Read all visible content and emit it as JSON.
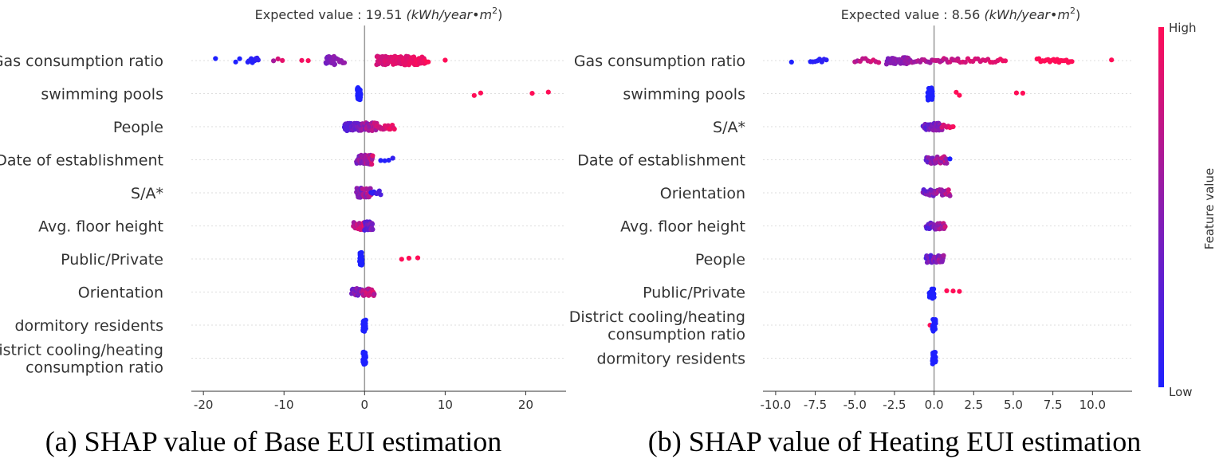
{
  "colorbar": {
    "high_label": "High",
    "low_label": "Low",
    "title": "Feature value",
    "high_color": "#ff0d57",
    "low_color": "#1e20ff"
  },
  "chart_data": [
    {
      "type": "scatter",
      "subtype": "shap-beeswarm",
      "title": "Expected value : 19.51 (kWh/year•m²)",
      "ev_prefix": "Expected value : 19.51",
      "ev_unit_text": "(kWh/year•m",
      "ev_unit_sup": "2",
      "ev_unit_close": ")",
      "caption": "(a) SHAP value of Base EUI estimation",
      "xlim": [
        -21.5,
        25
      ],
      "xticks": [
        -20,
        -10,
        0,
        10,
        20
      ],
      "xtick_labels": [
        "-20",
        "-10",
        "0",
        "10",
        "20"
      ],
      "features": [
        {
          "name": "Gas consumption ratio",
          "lines": [
            "Gas consumption ratio"
          ],
          "clusters": [
            [
              -18.5,
              -18.5,
              1,
              0,
              0
            ],
            [
              -16,
              -15.5,
              2,
              0,
              0
            ],
            [
              -14.5,
              -13.2,
              10,
              0,
              0.1
            ],
            [
              -11.3,
              -10.2,
              3,
              0.6,
              0.9
            ],
            [
              -7.8,
              -7,
              2,
              0.9,
              1
            ],
            [
              -4.8,
              -3.7,
              22,
              0.35,
              0.55
            ],
            [
              -3.5,
              -2.5,
              6,
              0.45,
              0.6
            ],
            [
              1.5,
              7.5,
              130,
              0.75,
              1
            ],
            [
              7.7,
              7.9,
              2,
              1,
              1
            ],
            [
              10,
              10,
              1,
              1,
              1
            ]
          ]
        },
        {
          "name": "swimming pools",
          "lines": [
            "swimming pools"
          ],
          "clusters": [
            [
              -0.9,
              -0.5,
              45,
              0,
              0
            ],
            [
              13.6,
              14.4,
              2,
              1,
              1
            ],
            [
              20.8,
              22.8,
              2,
              1,
              1
            ]
          ]
        },
        {
          "name": "People",
          "lines": [
            "People"
          ],
          "clusters": [
            [
              -2.5,
              -0.5,
              40,
              0.15,
              0.5
            ],
            [
              -0.5,
              1.5,
              40,
              0.3,
              0.9
            ],
            [
              1.5,
              3.7,
              18,
              0.65,
              1
            ]
          ]
        },
        {
          "name": "Date of establishment",
          "lines": [
            "Date of establishment"
          ],
          "clusters": [
            [
              -1,
              1,
              50,
              0.2,
              0.9
            ],
            [
              2,
              3.5,
              4,
              0,
              0.1
            ]
          ]
        },
        {
          "name": "S/A*",
          "lines": [
            "S/A*"
          ],
          "clusters": [
            [
              -1,
              0.8,
              45,
              0.2,
              0.9
            ],
            [
              0.8,
              2,
              8,
              0,
              0.3
            ]
          ]
        },
        {
          "name": "Avg. floor height",
          "lines": [
            "Avg. floor height"
          ],
          "clusters": [
            [
              -1.4,
              0,
              25,
              0.5,
              1
            ],
            [
              0,
              1,
              25,
              0.1,
              0.6
            ]
          ]
        },
        {
          "name": "Public/Private",
          "lines": [
            "Public/Private"
          ],
          "clusters": [
            [
              -0.6,
              -0.3,
              35,
              0,
              0
            ],
            [
              4.6,
              5.5,
              2,
              1,
              1
            ],
            [
              6.6,
              6.6,
              1,
              1,
              1
            ]
          ]
        },
        {
          "name": "Orientation",
          "lines": [
            "Orientation"
          ],
          "clusters": [
            [
              -1.6,
              1.2,
              45,
              0.2,
              1
            ]
          ]
        },
        {
          "name": "dormitory residents",
          "lines": [
            "dormitory residents"
          ],
          "clusters": [
            [
              -0.2,
              0.15,
              35,
              0,
              0
            ]
          ]
        },
        {
          "name": "District cooling/heating consumption ratio",
          "lines": [
            "District cooling/heating",
            "consumption ratio"
          ],
          "clusters": [
            [
              -0.2,
              0.15,
              35,
              0,
              0
            ]
          ]
        }
      ]
    },
    {
      "type": "scatter",
      "subtype": "shap-beeswarm",
      "title": "Expected value : 8.56 (kWh/year•m²)",
      "ev_prefix": "Expected value : 8.56",
      "ev_unit_text": "(kWh/year•m",
      "ev_unit_sup": "2",
      "ev_unit_close": ")",
      "caption": "(b) SHAP value of Heating EUI estimation",
      "xlim": [
        -10.8,
        12.5
      ],
      "xticks": [
        -10,
        -7.5,
        -5,
        -2.5,
        0,
        2.5,
        5,
        7.5,
        10
      ],
      "xtick_labels": [
        "-10.0",
        "-7.5",
        "-5.0",
        "-2.5",
        "0.0",
        "2.5",
        "5.0",
        "7.5",
        "10.0"
      ],
      "features": [
        {
          "name": "Gas consumption ratio",
          "lines": [
            "Gas consumption ratio"
          ],
          "clusters": [
            [
              -9,
              -9,
              1,
              0,
              0
            ],
            [
              -7.8,
              -6.8,
              8,
              0,
              0.1
            ],
            [
              -5,
              -3.5,
              10,
              0.6,
              0.9
            ],
            [
              -3,
              -1.5,
              45,
              0.35,
              0.65
            ],
            [
              -1.5,
              1.5,
              25,
              0.5,
              0.85
            ],
            [
              1.5,
              4.5,
              20,
              0.75,
              0.95
            ],
            [
              6.5,
              8.7,
              20,
              1,
              1
            ],
            [
              11.2,
              11.2,
              1,
              1,
              1
            ]
          ]
        },
        {
          "name": "swimming pools",
          "lines": [
            "swimming pools"
          ],
          "clusters": [
            [
              -0.4,
              -0.1,
              40,
              0,
              0
            ],
            [
              1.4,
              1.6,
              2,
              1,
              1
            ],
            [
              5.2,
              5.6,
              2,
              1,
              1
            ]
          ]
        },
        {
          "name": "S/A*",
          "lines": [
            "S/A*"
          ],
          "clusters": [
            [
              -0.7,
              0.5,
              35,
              0.1,
              0.7
            ],
            [
              0.5,
              1.2,
              8,
              0.7,
              1
            ]
          ]
        },
        {
          "name": "Date of establishment",
          "lines": [
            "Date of establishment"
          ],
          "clusters": [
            [
              -0.5,
              0.8,
              40,
              0.2,
              0.9
            ],
            [
              1,
              1,
              1,
              0,
              0
            ]
          ]
        },
        {
          "name": "Orientation",
          "lines": [
            "Orientation"
          ],
          "clusters": [
            [
              -0.7,
              1,
              40,
              0.2,
              0.9
            ]
          ]
        },
        {
          "name": "Avg. floor height",
          "lines": [
            "Avg. floor height"
          ],
          "clusters": [
            [
              -0.5,
              0.7,
              35,
              0.1,
              0.9
            ]
          ]
        },
        {
          "name": "People",
          "lines": [
            "People"
          ],
          "clusters": [
            [
              -0.5,
              0.6,
              35,
              0.1,
              0.8
            ]
          ]
        },
        {
          "name": "Public/Private",
          "lines": [
            "Public/Private"
          ],
          "clusters": [
            [
              -0.3,
              0,
              25,
              0,
              0
            ],
            [
              0.8,
              1.6,
              3,
              1,
              1
            ]
          ]
        },
        {
          "name": "District cooling/heating consumption ratio",
          "lines": [
            "District cooling/heating",
            "consumption ratio"
          ],
          "clusters": [
            [
              -0.25,
              -0.25,
              1,
              1,
              1
            ],
            [
              -0.1,
              0.1,
              25,
              0,
              0
            ]
          ]
        },
        {
          "name": "dormitory residents",
          "lines": [
            "dormitory residents"
          ],
          "clusters": [
            [
              -0.1,
              0.1,
              30,
              0,
              0
            ]
          ]
        }
      ]
    }
  ]
}
